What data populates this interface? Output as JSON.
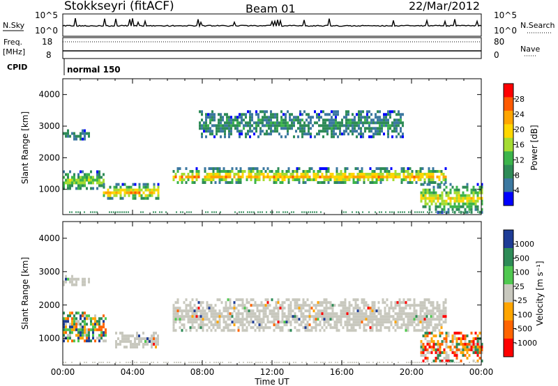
{
  "header": {
    "station": "Stokkseyri (fitACF)",
    "beam": "Beam 01",
    "date": "22/Mar/2012"
  },
  "strip": {
    "nsky_label": "N.Sky",
    "nsky_ticks": [
      "10^5",
      "10^0"
    ],
    "nsearch_label": "N.Search",
    "freq_label": "Freq.",
    "freq_unit": "[MHz]",
    "freq_ticks": [
      "18",
      "8"
    ],
    "nave_label": "Nave",
    "nave_ticks": [
      "80",
      "0"
    ],
    "cpid_label": "CPID",
    "cpid_value": "normal 150"
  },
  "chart_data": [
    {
      "type": "heatmap",
      "title": "",
      "ylabel": "Slant Range [km]",
      "xlabel": "",
      "yticks": [
        "4000",
        "3000",
        "2000",
        "1000"
      ],
      "ylim": [
        200,
        4500
      ],
      "xlim_hours": [
        0,
        24
      ],
      "colorbar": {
        "label": "Power [dB]",
        "ticks": [
          "28",
          "24",
          "20",
          "16",
          "12",
          "8",
          "4"
        ],
        "colors": [
          "#ff0000",
          "#ff5a00",
          "#ffa500",
          "#ffd700",
          "#a5dc32",
          "#3cb44b",
          "#2e8b57",
          "#3c78a0",
          "#0000ff"
        ]
      },
      "regions": [
        {
          "t0": 0.0,
          "t1": 1.5,
          "r0": 2600,
          "r1": 2900,
          "level": 1
        },
        {
          "t0": 0.0,
          "t1": 2.3,
          "r0": 1000,
          "r1": 1600,
          "level": 3
        },
        {
          "t0": 2.3,
          "t1": 5.5,
          "r0": 700,
          "r1": 1200,
          "level": 5
        },
        {
          "t0": 6.3,
          "t1": 22.0,
          "r0": 1200,
          "r1": 1700,
          "level": 5
        },
        {
          "t0": 7.8,
          "t1": 19.5,
          "r0": 2700,
          "r1": 3500,
          "level": 1
        },
        {
          "t0": 20.5,
          "t1": 24.0,
          "r0": 300,
          "r1": 1200,
          "level": 4
        }
      ]
    },
    {
      "type": "heatmap",
      "title": "",
      "ylabel": "Slant Range [km]",
      "xlabel": "Time UT",
      "yticks": [
        "4000",
        "3000",
        "2000",
        "1000"
      ],
      "ylim": [
        200,
        4500
      ],
      "xlim_hours": [
        0,
        24
      ],
      "xticks": [
        "00:00",
        "04:00",
        "08:00",
        "12:00",
        "16:00",
        "20:00",
        "00:00"
      ],
      "colorbar": {
        "label": "Velocity [m s⁻¹]",
        "ticks": [
          "1000",
          "500",
          "100",
          "25",
          "-25",
          "-100",
          "-500",
          "-1000"
        ],
        "colors": [
          "#1e3c96",
          "#2e8b57",
          "#50c850",
          "#c8c8be",
          "#ffa500",
          "#ff6400",
          "#ff0000"
        ]
      },
      "regions": [
        {
          "t0": 0.0,
          "t1": 1.5,
          "r0": 2600,
          "r1": 2900,
          "kind": "grey"
        },
        {
          "t0": 0.0,
          "t1": 2.5,
          "r0": 900,
          "r1": 1800,
          "kind": "mixed"
        },
        {
          "t0": 3.0,
          "t1": 5.5,
          "r0": 700,
          "r1": 1200,
          "kind": "grey"
        },
        {
          "t0": 6.3,
          "t1": 22.0,
          "r0": 1200,
          "r1": 2200,
          "kind": "grey"
        },
        {
          "t0": 20.5,
          "t1": 24.0,
          "r0": 300,
          "r1": 1200,
          "kind": "orange"
        }
      ]
    }
  ]
}
